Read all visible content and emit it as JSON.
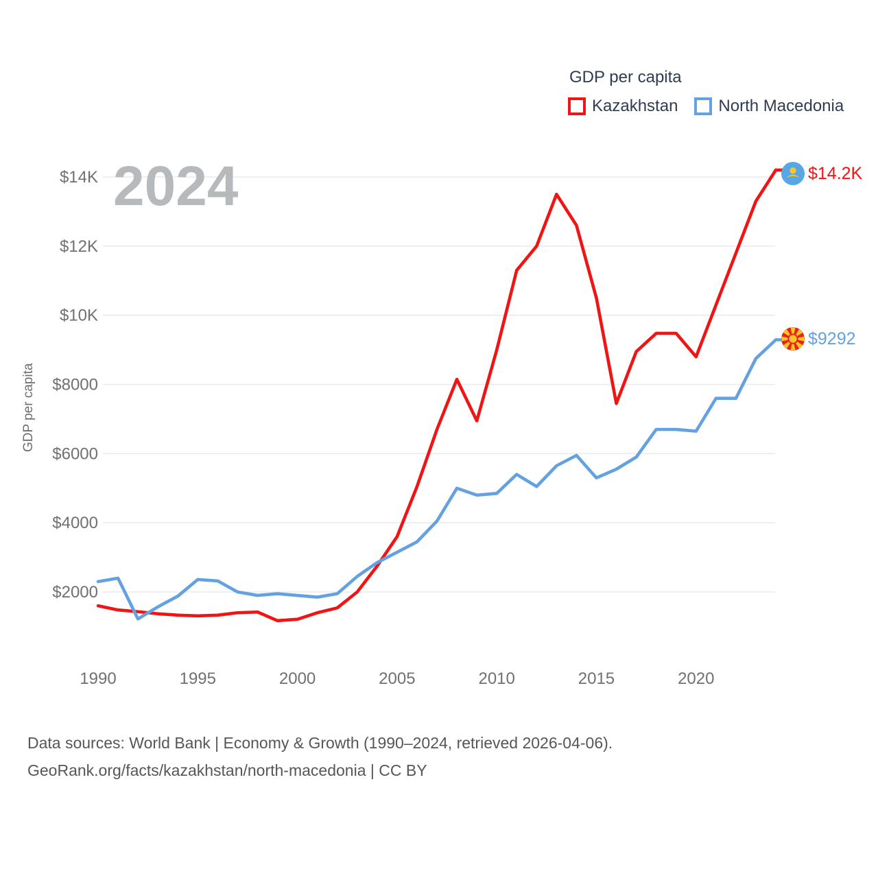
{
  "page": {
    "watermark_year": "2024",
    "footer": {
      "sources_line": "Data sources: World Bank | Economy & Growth (1990–2024, retrieved 2026-04-06).",
      "link_line": "GeoRank.org/facts/kazakhstan/north-macedonia | CC BY"
    }
  },
  "legend": {
    "title": "GDP per capita",
    "items": [
      {
        "label": "Kazakhstan",
        "color": "#f01414"
      },
      {
        "label": "North Macedonia",
        "color": "#64a1e0"
      }
    ]
  },
  "chart_data": {
    "type": "line",
    "title": "GDP per capita",
    "ylabel": "GDP per capita",
    "grid": true,
    "legend_position": "top-right",
    "ylim": [
      0,
      14600
    ],
    "x": [
      1990,
      1991,
      1992,
      1993,
      1994,
      1995,
      1996,
      1997,
      1998,
      1999,
      2000,
      2001,
      2002,
      2003,
      2004,
      2005,
      2006,
      2007,
      2008,
      2009,
      2010,
      2011,
      2012,
      2013,
      2014,
      2015,
      2016,
      2017,
      2018,
      2019,
      2020,
      2021,
      2022,
      2023,
      2024
    ],
    "x_ticks": [
      1990,
      1995,
      2000,
      2005,
      2010,
      2015,
      2020
    ],
    "y_ticks": [
      {
        "value": 2000,
        "label": "$2000"
      },
      {
        "value": 4000,
        "label": "$4000"
      },
      {
        "value": 6000,
        "label": "$6000"
      },
      {
        "value": 8000,
        "label": "$8000"
      },
      {
        "value": 10000,
        "label": "$10K"
      },
      {
        "value": 12000,
        "label": "$12K"
      },
      {
        "value": 14000,
        "label": "$14K"
      }
    ],
    "series": [
      {
        "name": "Kazakhstan",
        "color": "#f01414",
        "end_label": "$14.2K",
        "flag": "kazakhstan",
        "values": [
          1600,
          1480,
          1430,
          1370,
          1330,
          1310,
          1330,
          1400,
          1420,
          1170,
          1210,
          1400,
          1540,
          2000,
          2750,
          3600,
          5050,
          6700,
          8150,
          6950,
          9000,
          11300,
          12000,
          13500,
          12600,
          10500,
          7450,
          8950,
          9480,
          9480,
          8800,
          10300,
          11800,
          13300,
          14200
        ]
      },
      {
        "name": "North Macedonia",
        "color": "#64a1e0",
        "end_label": "$9292",
        "flag": "north-macedonia",
        "values": [
          2300,
          2400,
          1220,
          1570,
          1880,
          2360,
          2320,
          2000,
          1900,
          1950,
          1900,
          1850,
          1950,
          2450,
          2850,
          3150,
          3450,
          4050,
          5000,
          4800,
          4850,
          5400,
          5050,
          5650,
          5950,
          5300,
          5550,
          5900,
          6700,
          6700,
          6650,
          7600,
          7600,
          8750,
          9292
        ]
      }
    ]
  }
}
